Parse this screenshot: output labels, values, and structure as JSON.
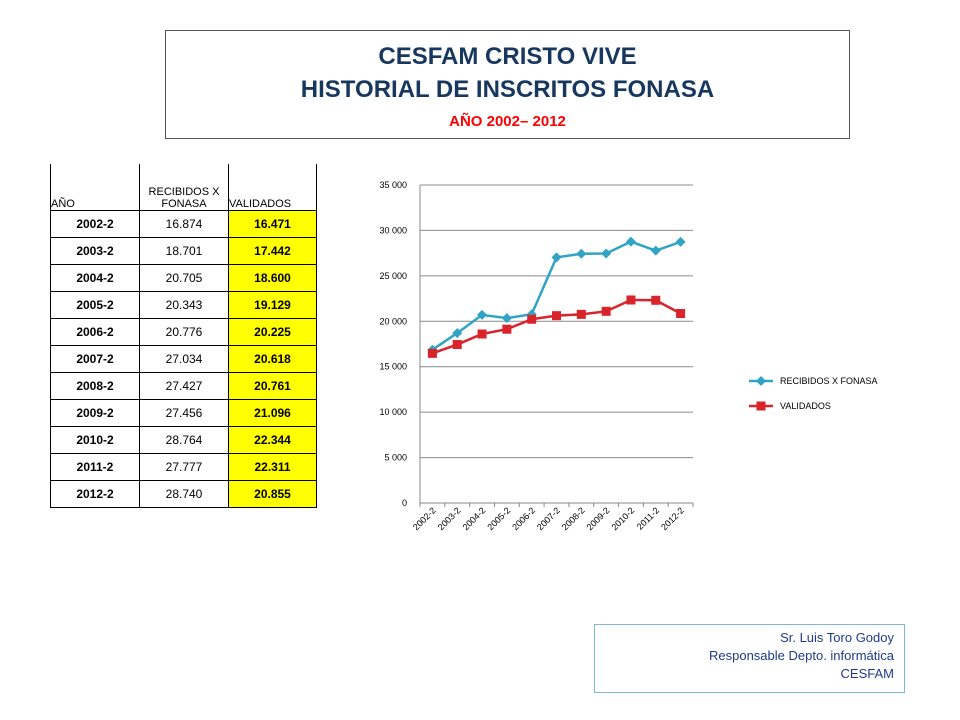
{
  "header": {
    "line1": "CESFAM CRISTO VIVE",
    "line2": "HISTORIAL DE INSCRITOS FONASA",
    "line3": "AÑO 2002– 2012"
  },
  "table": {
    "col1": "AÑO",
    "col2": "RECIBIDOS X FONASA",
    "col3": "VALIDADOS",
    "rows": [
      {
        "year": "2002-2",
        "recibidos": "16.874",
        "validados": "16.471"
      },
      {
        "year": "2003-2",
        "recibidos": "18.701",
        "validados": "17.442"
      },
      {
        "year": "2004-2",
        "recibidos": "20.705",
        "validados": "18.600"
      },
      {
        "year": "2005-2",
        "recibidos": "20.343",
        "validados": "19.129"
      },
      {
        "year": "2006-2",
        "recibidos": "20.776",
        "validados": "20.225"
      },
      {
        "year": "2007-2",
        "recibidos": "27.034",
        "validados": "20.618"
      },
      {
        "year": "2008-2",
        "recibidos": "27.427",
        "validados": "20.761"
      },
      {
        "year": "2009-2",
        "recibidos": "27.456",
        "validados": "21.096"
      },
      {
        "year": "2010-2",
        "recibidos": "28.764",
        "validados": "22.344"
      },
      {
        "year": "2011-2",
        "recibidos": "27.777",
        "validados": "22.311"
      },
      {
        "year": "2012-2",
        "recibidos": "28.740",
        "validados": "20.855"
      }
    ]
  },
  "chart_data": {
    "type": "line",
    "categories": [
      "2002-2",
      "2003-2",
      "2004-2",
      "2005-2",
      "2006-2",
      "2007-2",
      "2008-2",
      "2009-2",
      "2010-2",
      "2011-2",
      "2012-2"
    ],
    "series": [
      {
        "name": "RECIBIDOS X FONASA",
        "color": "#31a3c4",
        "marker": "diamond",
        "values": [
          16874,
          18701,
          20705,
          20343,
          20776,
          27034,
          27427,
          27456,
          28764,
          27777,
          28740
        ]
      },
      {
        "name": "VALIDADOS",
        "color": "#d9242b",
        "marker": "square",
        "values": [
          16471,
          17442,
          18600,
          19129,
          20225,
          20618,
          20761,
          21096,
          22344,
          22311,
          20855
        ]
      }
    ],
    "ylim": [
      0,
      35000
    ],
    "yticks": [
      0,
      5000,
      10000,
      15000,
      20000,
      25000,
      30000,
      35000
    ],
    "ytick_labels": [
      "0",
      "5 000",
      "10 000",
      "15 000",
      "20 000",
      "25 000",
      "30 000",
      "35 000"
    ],
    "grid": true,
    "legend": "right"
  },
  "credit": {
    "line1": "Sr. Luis Toro Godoy",
    "line2": "Responsable  Depto. informática",
    "line3": "CESFAM"
  }
}
